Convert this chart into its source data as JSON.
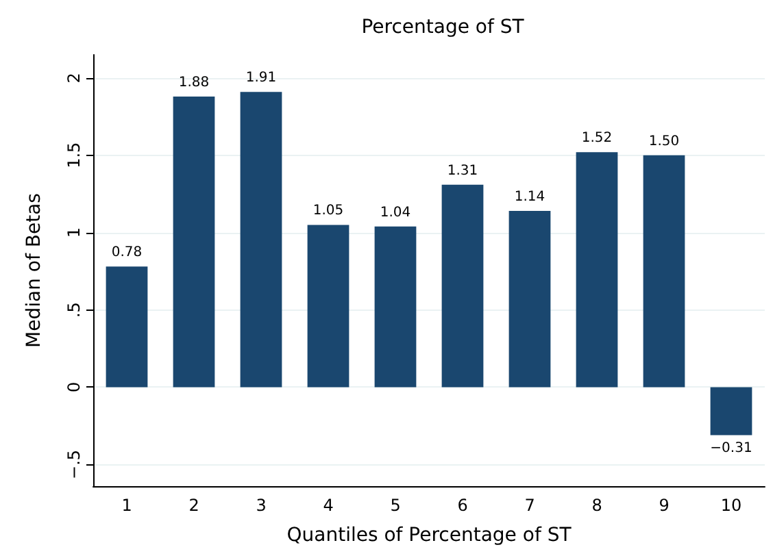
{
  "chart_data": {
    "type": "bar",
    "title": "Percentage of ST",
    "xlabel": "Quantiles of Percentage of ST",
    "ylabel": "Median of Betas",
    "categories": [
      "1",
      "2",
      "3",
      "4",
      "5",
      "6",
      "7",
      "8",
      "9",
      "10"
    ],
    "values": [
      0.78,
      1.88,
      1.91,
      1.05,
      1.04,
      1.31,
      1.14,
      1.52,
      1.5,
      -0.31
    ],
    "value_labels": [
      "0.78",
      "1.88",
      "1.91",
      "1.05",
      "1.04",
      "1.31",
      "1.14",
      "1.52",
      "1.50",
      "−0.31"
    ],
    "color": "#1a476f",
    "ylim": [
      -0.64,
      2.15
    ],
    "yticks": [
      {
        "value": -0.5,
        "label": "−.5"
      },
      0,
      {
        "value": 0.5,
        "label": ".5"
      },
      1,
      1.5,
      2
    ],
    "grid": "y"
  }
}
